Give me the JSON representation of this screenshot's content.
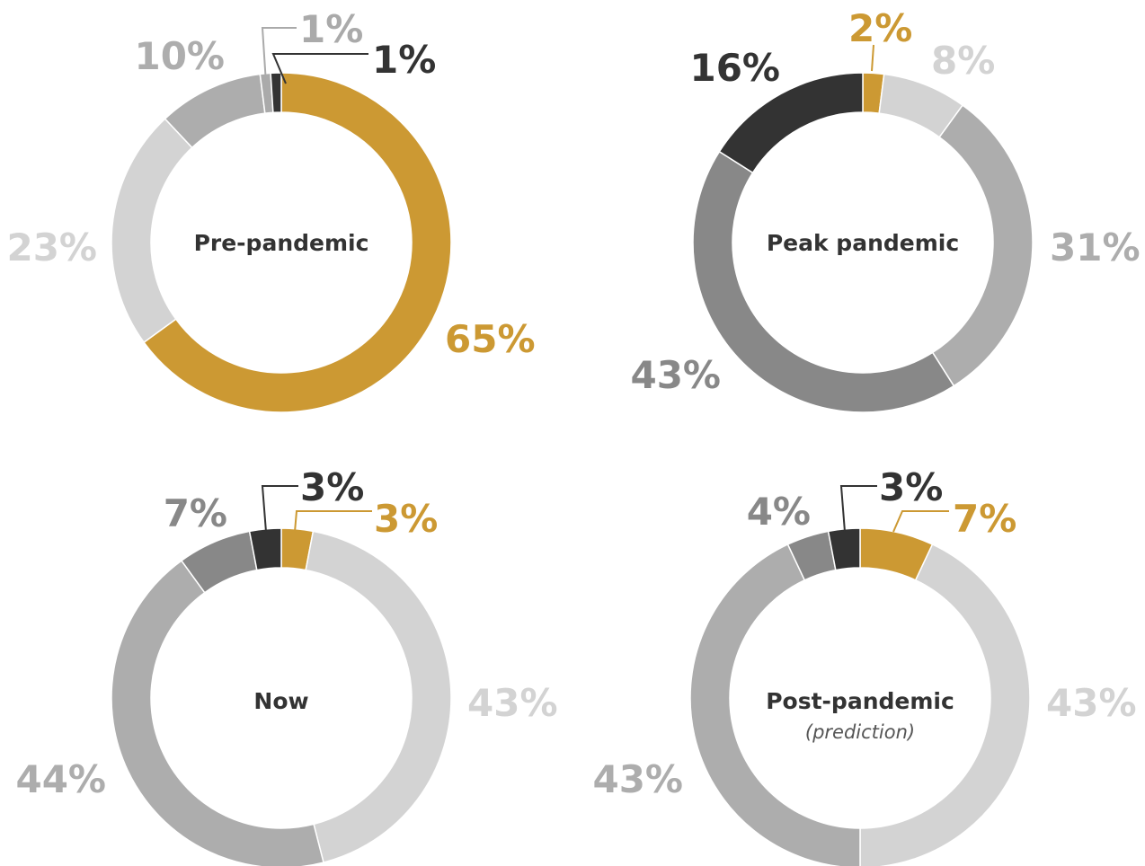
{
  "colors": {
    "gold": "#CC9933",
    "dark": "#333333",
    "mid": "#888888",
    "light_mid": "#ADADAD",
    "light": "#D3D3D3"
  },
  "chart_data": [
    {
      "type": "pie",
      "title": "Pre-pandemic",
      "slices": [
        {
          "value": 65,
          "label": "65%",
          "color": "#CC9933"
        },
        {
          "value": 23,
          "label": "23%",
          "color": "#D3D3D3"
        },
        {
          "value": 10,
          "label": "10%",
          "color": "#ADADAD"
        },
        {
          "value": 1,
          "label": "1%",
          "color": "#AAAAAA"
        },
        {
          "value": 1,
          "label": "1%",
          "color": "#333333"
        }
      ]
    },
    {
      "type": "pie",
      "title": "Peak pandemic",
      "slices": [
        {
          "value": 2,
          "label": "2%",
          "color": "#CC9933"
        },
        {
          "value": 8,
          "label": "8%",
          "color": "#D3D3D3"
        },
        {
          "value": 31,
          "label": "31%",
          "color": "#ADADAD"
        },
        {
          "value": 43,
          "label": "43%",
          "color": "#888888"
        },
        {
          "value": 16,
          "label": "16%",
          "color": "#333333"
        }
      ]
    },
    {
      "type": "pie",
      "title": "Now",
      "slices": [
        {
          "value": 3,
          "label": "3%",
          "color": "#CC9933"
        },
        {
          "value": 43,
          "label": "43%",
          "color": "#D3D3D3"
        },
        {
          "value": 44,
          "label": "44%",
          "color": "#ADADAD"
        },
        {
          "value": 7,
          "label": "7%",
          "color": "#888888"
        },
        {
          "value": 3,
          "label": "3%",
          "color": "#333333"
        }
      ]
    },
    {
      "type": "pie",
      "title": "Post-pandemic",
      "subtitle": "(prediction)",
      "slices": [
        {
          "value": 7,
          "label": "7%",
          "color": "#CC9933"
        },
        {
          "value": 43,
          "label": "43%",
          "color": "#D3D3D3"
        },
        {
          "value": 43,
          "label": "43%",
          "color": "#ADADAD"
        },
        {
          "value": 4,
          "label": "4%",
          "color": "#888888"
        },
        {
          "value": 3,
          "label": "3%",
          "color": "#333333"
        }
      ]
    }
  ]
}
